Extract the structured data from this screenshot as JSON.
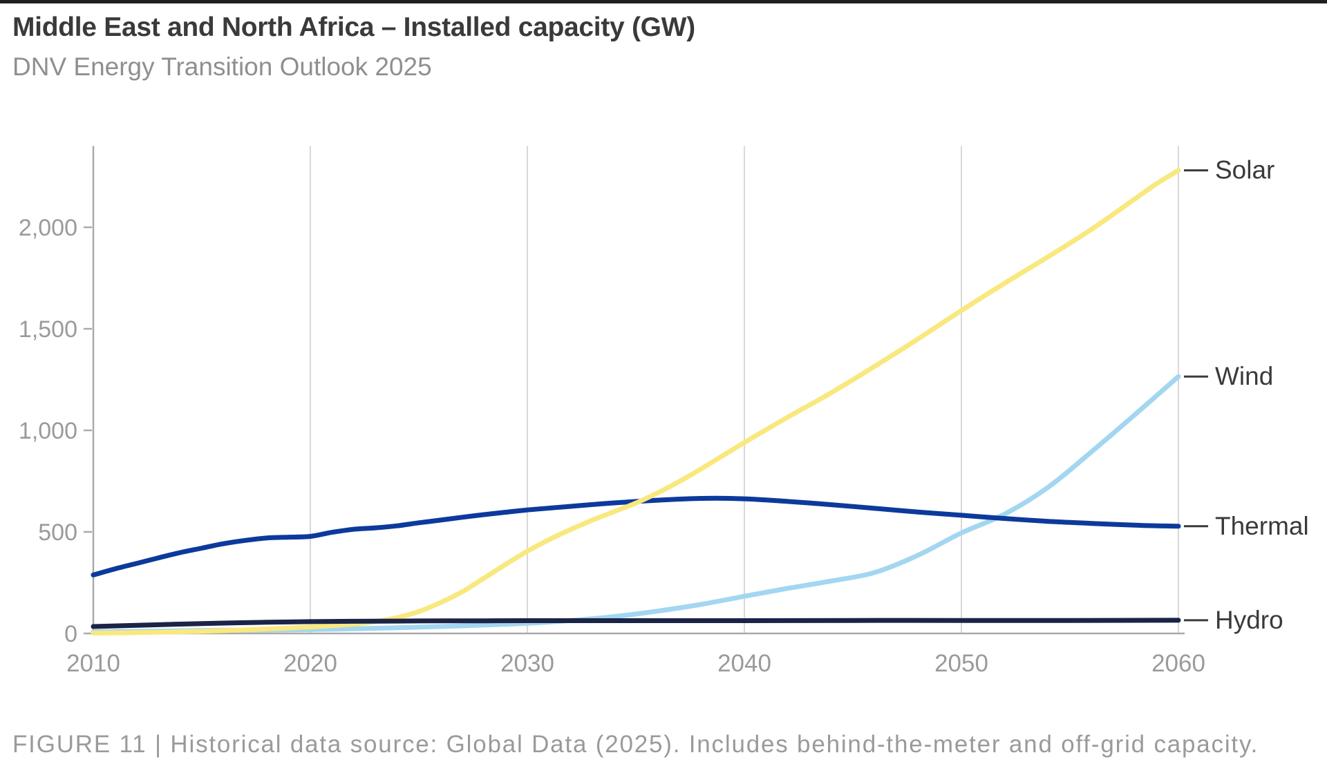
{
  "header": {
    "title": "Middle East and North Africa – Installed capacity (GW)",
    "subtitle": "DNV Energy Transition Outlook 2025"
  },
  "footer": {
    "note": "FIGURE 11 | Historical data source: Global Data (2025). Includes behind-the-meter and off-grid capacity."
  },
  "colors": {
    "topbar": "#1f1f1f",
    "title_text": "#3a3a3a",
    "muted_text": "#9a9a9a",
    "axis_line": "#a9a9a9",
    "gridline": "#d8d8d8",
    "end_label_text": "#3a3a3a",
    "end_dash": "#3a3a3a"
  },
  "chart_data": {
    "type": "line",
    "title": "Middle East and North Africa – Installed capacity (GW)",
    "subtitle": "DNV Energy Transition Outlook 2025",
    "xlabel": "",
    "ylabel": "Installed capacity (GW)",
    "xlim": [
      2010,
      2060
    ],
    "ylim": [
      0,
      2400
    ],
    "grid": "vertical-only",
    "legend_position": "right-end-labels",
    "xticks": [
      {
        "value": 2010,
        "label": "2010"
      },
      {
        "value": 2020,
        "label": "2020"
      },
      {
        "value": 2030,
        "label": "2030"
      },
      {
        "value": 2040,
        "label": "2040"
      },
      {
        "value": 2050,
        "label": "2050"
      },
      {
        "value": 2060,
        "label": "2060"
      }
    ],
    "yticks": [
      {
        "value": 0,
        "label": "0"
      },
      {
        "value": 500,
        "label": "500"
      },
      {
        "value": 1000,
        "label": "1,000"
      },
      {
        "value": 1500,
        "label": "1,500"
      },
      {
        "value": 2000,
        "label": "2,000"
      }
    ],
    "gridline_years": [
      2020,
      2030,
      2040,
      2050,
      2060
    ],
    "series": [
      {
        "name": "Solar",
        "color": "#F9E87E",
        "z": 3,
        "points": [
          [
            2010,
            2
          ],
          [
            2012,
            4
          ],
          [
            2014,
            8
          ],
          [
            2016,
            14
          ],
          [
            2018,
            22
          ],
          [
            2020,
            32
          ],
          [
            2021,
            38
          ],
          [
            2022,
            46
          ],
          [
            2023,
            58
          ],
          [
            2024,
            78
          ],
          [
            2025,
            108
          ],
          [
            2026,
            152
          ],
          [
            2027,
            205
          ],
          [
            2028,
            272
          ],
          [
            2029,
            340
          ],
          [
            2030,
            405
          ],
          [
            2031,
            462
          ],
          [
            2032,
            512
          ],
          [
            2033,
            558
          ],
          [
            2034,
            600
          ],
          [
            2035,
            642
          ],
          [
            2036,
            692
          ],
          [
            2037,
            748
          ],
          [
            2038,
            810
          ],
          [
            2040,
            940
          ],
          [
            2042,
            1065
          ],
          [
            2044,
            1185
          ],
          [
            2046,
            1315
          ],
          [
            2048,
            1450
          ],
          [
            2050,
            1590
          ],
          [
            2052,
            1725
          ],
          [
            2054,
            1855
          ],
          [
            2056,
            1990
          ],
          [
            2058,
            2140
          ],
          [
            2059,
            2215
          ],
          [
            2060,
            2280
          ]
        ]
      },
      {
        "name": "Wind",
        "color": "#A3D6F0",
        "z": 1,
        "points": [
          [
            2010,
            8
          ],
          [
            2012,
            10
          ],
          [
            2014,
            13
          ],
          [
            2016,
            16
          ],
          [
            2018,
            17
          ],
          [
            2020,
            19
          ],
          [
            2022,
            23
          ],
          [
            2024,
            28
          ],
          [
            2026,
            34
          ],
          [
            2028,
            41
          ],
          [
            2030,
            50
          ],
          [
            2032,
            64
          ],
          [
            2034,
            83
          ],
          [
            2036,
            110
          ],
          [
            2038,
            143
          ],
          [
            2040,
            183
          ],
          [
            2042,
            222
          ],
          [
            2044,
            258
          ],
          [
            2046,
            300
          ],
          [
            2048,
            385
          ],
          [
            2050,
            495
          ],
          [
            2052,
            588
          ],
          [
            2054,
            720
          ],
          [
            2056,
            895
          ],
          [
            2058,
            1078
          ],
          [
            2060,
            1265
          ]
        ]
      },
      {
        "name": "Thermal",
        "color": "#0C3A9C",
        "z": 2,
        "points": [
          [
            2010,
            288
          ],
          [
            2011,
            318
          ],
          [
            2012,
            345
          ],
          [
            2013,
            372
          ],
          [
            2014,
            398
          ],
          [
            2015,
            420
          ],
          [
            2016,
            442
          ],
          [
            2017,
            458
          ],
          [
            2018,
            470
          ],
          [
            2019,
            474
          ],
          [
            2020,
            478
          ],
          [
            2021,
            498
          ],
          [
            2022,
            513
          ],
          [
            2023,
            520
          ],
          [
            2024,
            530
          ],
          [
            2025,
            545
          ],
          [
            2026,
            558
          ],
          [
            2027,
            572
          ],
          [
            2028,
            585
          ],
          [
            2029,
            597
          ],
          [
            2030,
            608
          ],
          [
            2032,
            626
          ],
          [
            2034,
            643
          ],
          [
            2036,
            656
          ],
          [
            2038,
            665
          ],
          [
            2040,
            663
          ],
          [
            2042,
            650
          ],
          [
            2044,
            634
          ],
          [
            2046,
            616
          ],
          [
            2048,
            598
          ],
          [
            2050,
            582
          ],
          [
            2052,
            566
          ],
          [
            2054,
            552
          ],
          [
            2056,
            542
          ],
          [
            2058,
            533
          ],
          [
            2060,
            528
          ]
        ]
      },
      {
        "name": "Hydro",
        "color": "#1B2447",
        "z": 4,
        "points": [
          [
            2010,
            34
          ],
          [
            2012,
            40
          ],
          [
            2014,
            46
          ],
          [
            2016,
            51
          ],
          [
            2018,
            55
          ],
          [
            2020,
            58
          ],
          [
            2022,
            60
          ],
          [
            2024,
            61
          ],
          [
            2026,
            62
          ],
          [
            2028,
            62
          ],
          [
            2030,
            63
          ],
          [
            2035,
            63
          ],
          [
            2040,
            63
          ],
          [
            2045,
            64
          ],
          [
            2050,
            64
          ],
          [
            2055,
            64
          ],
          [
            2060,
            65
          ]
        ]
      }
    ]
  }
}
